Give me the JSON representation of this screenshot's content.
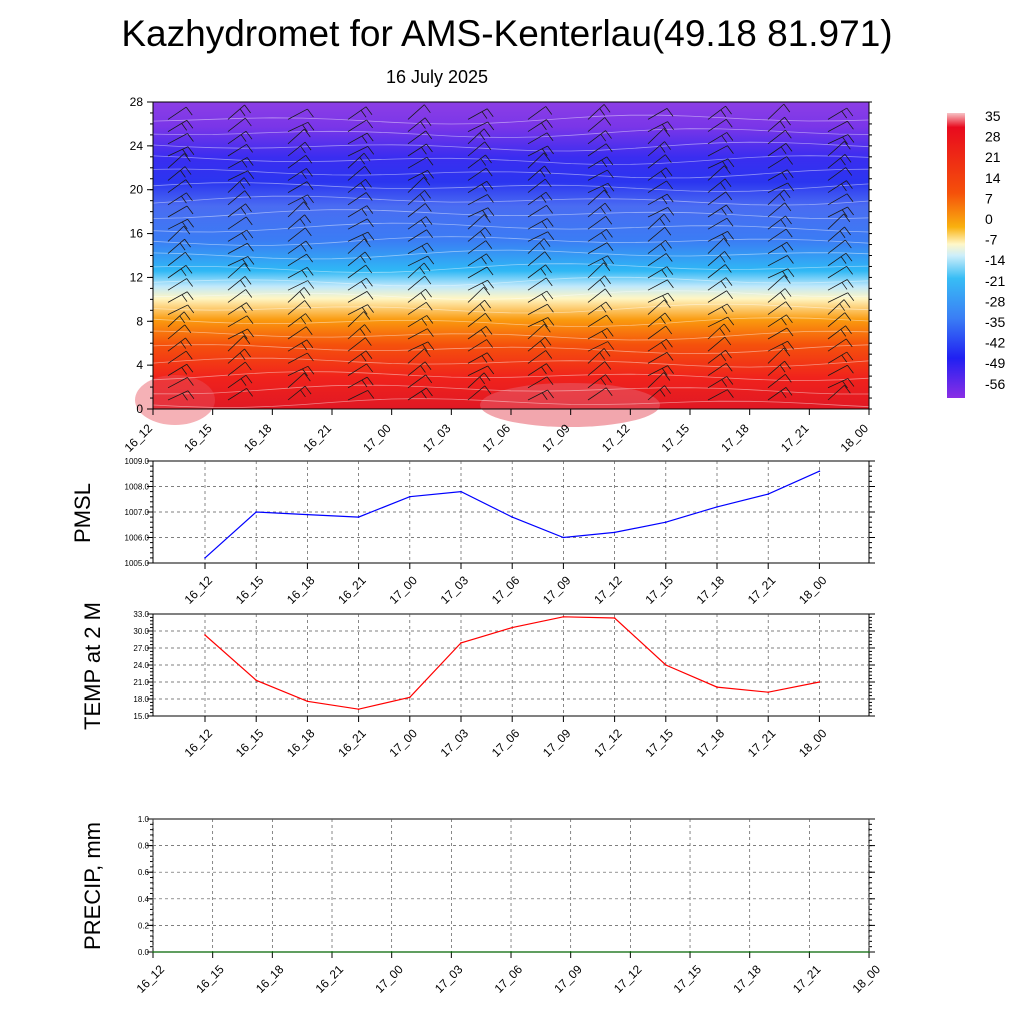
{
  "title": "Kazhydromet for AMS-Kenterlau(49.18 81.971)",
  "subtitle": "16 July 2025",
  "time_labels": [
    "16_12",
    "16_15",
    "16_18",
    "16_21",
    "17_00",
    "17_03",
    "17_06",
    "17_09",
    "17_12",
    "17_15",
    "17_18",
    "17_21",
    "18_00"
  ],
  "colorbar": {
    "labels": [
      "35",
      "28",
      "21",
      "14",
      "7",
      "0",
      "-7",
      "-14",
      "-21",
      "-28",
      "-35",
      "-42",
      "-49",
      "-56"
    ],
    "stops": [
      "#f7b8bc",
      "#e80a1e",
      "#f5500a",
      "#f9a20b",
      "#ffe33c",
      "#fff7c8",
      "#cdeefa",
      "#38bdf5",
      "#3a7ef5",
      "#3343ef",
      "#2020f2",
      "#8a2ee5"
    ]
  },
  "chart_data": [
    {
      "type": "heatmap",
      "name": "cross-section",
      "ylim": [
        0,
        28
      ],
      "yticks": [
        "0",
        "4",
        "8",
        "12",
        "16",
        "20",
        "24",
        "28"
      ],
      "x": [
        "16_12",
        "16_15",
        "16_18",
        "16_21",
        "17_00",
        "17_03",
        "17_06",
        "17_09",
        "17_12",
        "17_15",
        "17_18",
        "17_21",
        "18_00"
      ],
      "grid": false
    },
    {
      "type": "line",
      "ylabel": "PMSL",
      "ylim": [
        1005.0,
        1009.0
      ],
      "yticks": [
        "1005.0",
        "1006.0",
        "1007.0",
        "1008.0",
        "1009.0"
      ],
      "x": [
        "16_12",
        "16_15",
        "16_18",
        "16_21",
        "17_00",
        "17_03",
        "17_06",
        "17_09",
        "17_12",
        "17_15",
        "17_18",
        "17_21",
        "18_00"
      ],
      "values": [
        1005.2,
        1007.0,
        1006.9,
        1006.8,
        1007.6,
        1007.8,
        1006.8,
        1006.0,
        1006.2,
        1006.6,
        1007.2,
        1007.7,
        1008.6
      ],
      "color": "#0000ff",
      "grid": true
    },
    {
      "type": "line",
      "ylabel": "TEMP at 2 M",
      "ylim": [
        15.0,
        33.0
      ],
      "yticks": [
        "15.0",
        "18.0",
        "21.0",
        "24.0",
        "27.0",
        "30.0",
        "33.0"
      ],
      "x": [
        "16_12",
        "16_15",
        "16_18",
        "16_21",
        "17_00",
        "17_03",
        "17_06",
        "17_09",
        "17_12",
        "17_15",
        "17_18",
        "17_21",
        "18_00"
      ],
      "values": [
        29.3,
        21.3,
        17.6,
        16.2,
        18.3,
        27.9,
        30.6,
        32.5,
        32.3,
        24.0,
        20.1,
        19.2,
        21.0
      ],
      "color": "#ff0000",
      "grid": true
    },
    {
      "type": "line",
      "ylabel": "PRECIP, mm",
      "ylim": [
        0.0,
        1.0
      ],
      "yticks": [
        "0.0",
        "0.2",
        "0.4",
        "0.6",
        "0.8",
        "1.0"
      ],
      "x": [
        "16_12",
        "16_15",
        "16_18",
        "16_21",
        "17_00",
        "17_03",
        "17_06",
        "17_09",
        "17_12",
        "17_15",
        "17_18",
        "17_21",
        "18_00"
      ],
      "values": [
        0,
        0,
        0,
        0,
        0,
        0,
        0,
        0,
        0,
        0,
        0,
        0,
        0
      ],
      "color": "#006400",
      "grid": true
    }
  ]
}
